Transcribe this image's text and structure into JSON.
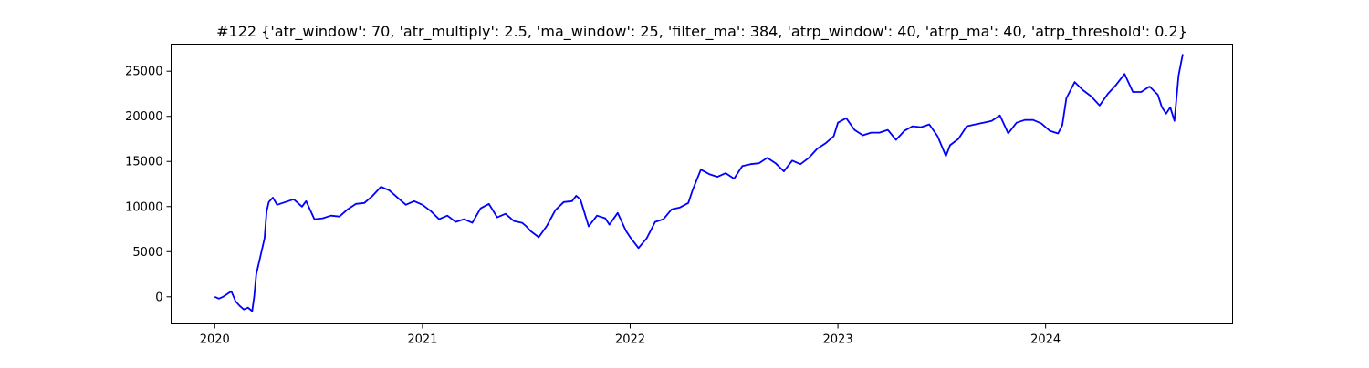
{
  "chart_data": {
    "type": "line",
    "title": "#122 {'atr_window': 70, 'atr_multiply': 2.5, 'ma_window': 25, 'filter_ma': 384, 'atrp_window': 40, 'atrp_ma': 40, 'atrp_threshold': 0.2}",
    "xlabel": "",
    "ylabel": "",
    "x_ticks": [
      "2020",
      "2021",
      "2022",
      "2023",
      "2024"
    ],
    "y_ticks": [
      "0",
      "5000",
      "10000",
      "15000",
      "20000",
      "25000"
    ],
    "xlim": [
      2019.79,
      2024.9
    ],
    "ylim": [
      -3000,
      28000
    ],
    "grid": false,
    "colors": {
      "series": "#0000ff"
    },
    "series": [
      {
        "x": [
          2020.0,
          2020.02,
          2020.04,
          2020.06,
          2020.08,
          2020.1,
          2020.12,
          2020.14,
          2020.16,
          2020.18,
          2020.19,
          2020.2,
          2020.21,
          2020.22,
          2020.24,
          2020.25,
          2020.26,
          2020.28,
          2020.3,
          2020.34,
          2020.38,
          2020.42,
          2020.44,
          2020.48,
          2020.52,
          2020.56,
          2020.6,
          2020.64,
          2020.68,
          2020.72,
          2020.76,
          2020.8,
          2020.84,
          2020.88,
          2020.92,
          2020.96,
          2021.0,
          2021.04,
          2021.08,
          2021.12,
          2021.16,
          2021.2,
          2021.24,
          2021.28,
          2021.32,
          2021.36,
          2021.4,
          2021.44,
          2021.48,
          2021.5,
          2021.52,
          2021.56,
          2021.6,
          2021.64,
          2021.68,
          2021.72,
          2021.74,
          2021.76,
          2021.8,
          2021.84,
          2021.88,
          2021.9,
          2021.94,
          2021.98,
          2022.0,
          2022.04,
          2022.08,
          2022.12,
          2022.16,
          2022.2,
          2022.24,
          2022.28,
          2022.3,
          2022.34,
          2022.38,
          2022.42,
          2022.46,
          2022.5,
          2022.54,
          2022.58,
          2022.62,
          2022.66,
          2022.7,
          2022.74,
          2022.78,
          2022.82,
          2022.86,
          2022.9,
          2022.94,
          2022.98,
          2023.0,
          2023.04,
          2023.08,
          2023.12,
          2023.16,
          2023.2,
          2023.24,
          2023.28,
          2023.32,
          2023.36,
          2023.4,
          2023.44,
          2023.48,
          2023.52,
          2023.54,
          2023.58,
          2023.62,
          2023.66,
          2023.7,
          2023.74,
          2023.78,
          2023.82,
          2023.86,
          2023.9,
          2023.94,
          2023.98,
          2024.02,
          2024.06,
          2024.08,
          2024.1,
          2024.14,
          2024.18,
          2024.22,
          2024.26,
          2024.3,
          2024.34,
          2024.38,
          2024.42,
          2024.46,
          2024.5,
          2024.54,
          2024.56,
          2024.58,
          2024.6,
          2024.62,
          2024.64,
          2024.66
        ],
        "y": [
          0,
          -200,
          0,
          300,
          600,
          -500,
          -1000,
          -1400,
          -1200,
          -1600,
          0,
          2500,
          3500,
          4500,
          6500,
          9500,
          10500,
          11000,
          10200,
          10500,
          10800,
          10000,
          10600,
          8600,
          8700,
          9000,
          8900,
          9700,
          10300,
          10400,
          11200,
          12200,
          11800,
          11000,
          10200,
          10600,
          10200,
          9500,
          8600,
          9000,
          8300,
          8600,
          8200,
          9800,
          10300,
          8800,
          9200,
          8400,
          8200,
          7800,
          7300,
          6600,
          7900,
          9600,
          10500,
          10600,
          11200,
          10800,
          7800,
          9000,
          8700,
          8000,
          9300,
          7300,
          6600,
          5400,
          6500,
          8300,
          8600,
          9700,
          9900,
          10400,
          11800,
          14100,
          13600,
          13300,
          13700,
          13100,
          14500,
          14700,
          14800,
          15400,
          14800,
          13900,
          15100,
          14700,
          15400,
          16400,
          17000,
          17800,
          19300,
          19800,
          18500,
          17900,
          18200,
          18200,
          18500,
          17400,
          18400,
          18900,
          18800,
          19100,
          17800,
          15600,
          16800,
          17500,
          18900,
          19100,
          19300,
          19500,
          20100,
          18100,
          19300,
          19600,
          19600,
          19200,
          18400,
          18100,
          19000,
          22000,
          23800,
          22900,
          22200,
          21200,
          22500,
          23500,
          24700,
          22700,
          22700,
          23300,
          22400,
          21000,
          20300,
          21000,
          19500,
          24500,
          26900
        ]
      }
    ]
  }
}
